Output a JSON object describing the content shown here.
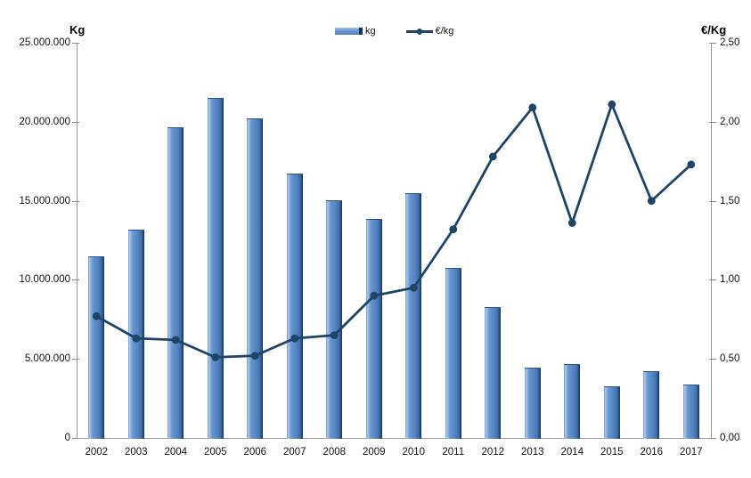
{
  "page": {
    "background": "#FFFFFF"
  },
  "chart_data": {
    "type": "combo",
    "title": "",
    "categories": [
      "2002",
      "2003",
      "2004",
      "2005",
      "2006",
      "2007",
      "2008",
      "2009",
      "2010",
      "2011",
      "2012",
      "2013",
      "2014",
      "2015",
      "2016",
      "2017"
    ],
    "series": [
      {
        "name": "kg",
        "type": "bar",
        "axis": "left",
        "color": "#5384C2",
        "highlight_color": "#A9C6E9",
        "edge_color": "#16355C",
        "values": [
          11500000,
          13200000,
          19650000,
          21500000,
          20200000,
          16700000,
          15050000,
          13850000,
          15500000,
          10750000,
          8250000,
          4450000,
          4700000,
          3250000,
          4250000,
          3400000
        ]
      },
      {
        "name": "€/kg",
        "type": "line",
        "axis": "right",
        "color": "#1E4567",
        "marker": "circle",
        "values": [
          0.77,
          0.63,
          0.62,
          0.51,
          0.52,
          0.63,
          0.65,
          0.9,
          0.95,
          1.32,
          1.78,
          2.09,
          1.36,
          2.11,
          1.5,
          1.73
        ]
      }
    ],
    "left_axis": {
      "title": "Kg",
      "min": 0,
      "max": 25000000,
      "step": 5000000,
      "tick_labels": [
        "0",
        "5.000.000",
        "10.000.000",
        "15.000.000",
        "20.000.000",
        "25.000.000"
      ]
    },
    "right_axis": {
      "title": "€/Kg",
      "min": 0,
      "max": 2.5,
      "step": 0.5,
      "tick_labels": [
        "0,00",
        "0,50",
        "1,00",
        "1,50",
        "2,00",
        "2,50"
      ]
    },
    "legend": {
      "position": "top-center",
      "entries": [
        {
          "label": "kg",
          "swatch": "bar"
        },
        {
          "label": "€/kg",
          "swatch": "line-marker"
        }
      ]
    },
    "grid": false,
    "plot_background": "#FFFFFF"
  }
}
